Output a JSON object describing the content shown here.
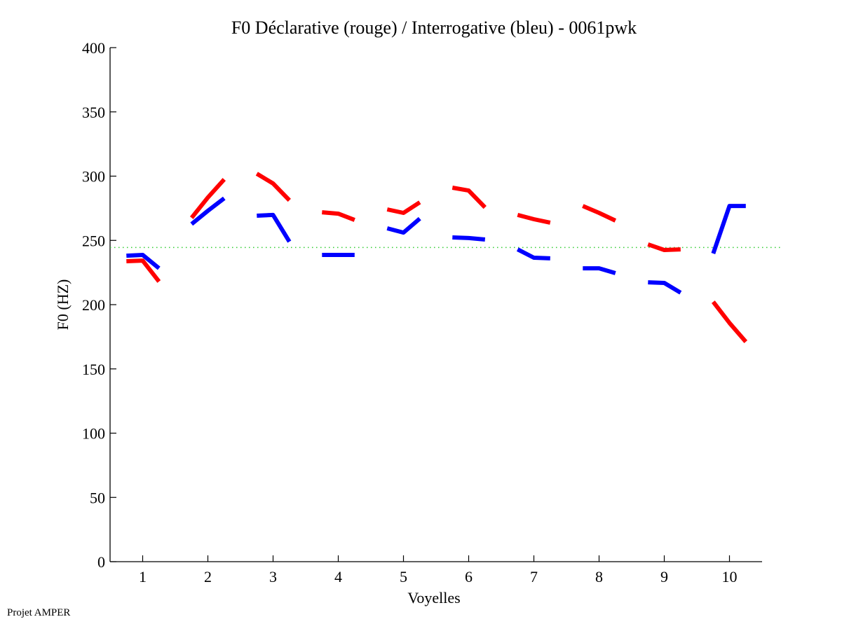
{
  "chart_data": {
    "type": "line",
    "title": "F0 Déclarative (rouge) / Interrogative (bleu) - 0061pwk",
    "xlabel": "Voyelles",
    "ylabel": "F0 (HZ)",
    "xlim": [
      0.5,
      10.5
    ],
    "ylim": [
      0,
      400
    ],
    "xticks": [
      1,
      2,
      3,
      4,
      5,
      6,
      7,
      8,
      9,
      10
    ],
    "yticks": [
      0,
      50,
      100,
      150,
      200,
      250,
      300,
      350,
      400
    ],
    "grid": false,
    "reference_line": {
      "y": 244.5,
      "color": "#33cc33",
      "style": "dotted"
    },
    "series": [
      {
        "name": "Déclarative (rouge)",
        "color": "#ff0000",
        "segments": [
          {
            "vowel": 1,
            "x": [
              0.75,
              1.0,
              1.25
            ],
            "y": [
              233.8,
              234.3,
              218.0
            ]
          },
          {
            "vowel": 2,
            "x": [
              1.75,
              2.0,
              2.25
            ],
            "y": [
              267.6,
              283.4,
              297.5
            ]
          },
          {
            "vowel": 3,
            "x": [
              2.75,
              3.0,
              3.25
            ],
            "y": [
              301.9,
              294.3,
              281.2
            ]
          },
          {
            "vowel": 4,
            "x": [
              3.75,
              4.0,
              4.25
            ],
            "y": [
              271.9,
              270.8,
              265.9
            ]
          },
          {
            "vowel": 5,
            "x": [
              4.75,
              5.0,
              5.25
            ],
            "y": [
              274.1,
              271.4,
              279.6
            ]
          },
          {
            "vowel": 6,
            "x": [
              5.75,
              6.0,
              6.25
            ],
            "y": [
              291.0,
              288.8,
              275.7
            ]
          },
          {
            "vowel": 7,
            "x": [
              6.75,
              7.0,
              7.25
            ],
            "y": [
              269.8,
              266.5,
              263.8
            ]
          },
          {
            "vowel": 8,
            "x": [
              7.75,
              8.0,
              8.25
            ],
            "y": [
              276.8,
              271.4,
              265.4
            ]
          },
          {
            "vowel": 9,
            "x": [
              8.75,
              9.0,
              9.25
            ],
            "y": [
              246.9,
              242.5,
              243.0
            ]
          },
          {
            "vowel": 10,
            "x": [
              9.75,
              10.0,
              10.25
            ],
            "y": [
              202.2,
              185.8,
              171.1
            ]
          }
        ]
      },
      {
        "name": "Interrogative (bleu)",
        "color": "#0000ff",
        "segments": [
          {
            "vowel": 1,
            "x": [
              0.75,
              1.0,
              1.25
            ],
            "y": [
              238.1,
              238.7,
              228.3
            ]
          },
          {
            "vowel": 2,
            "x": [
              1.75,
              2.0,
              2.25
            ],
            "y": [
              262.7,
              273.0,
              282.8
            ]
          },
          {
            "vowel": 3,
            "x": [
              2.75,
              3.0,
              3.25
            ],
            "y": [
              269.2,
              269.8,
              249.0
            ]
          },
          {
            "vowel": 4,
            "x": [
              3.75,
              4.0,
              4.25
            ],
            "y": [
              238.7,
              238.7,
              238.7
            ]
          },
          {
            "vowel": 5,
            "x": [
              4.75,
              5.0,
              5.25
            ],
            "y": [
              259.4,
              256.1,
              267.0
            ]
          },
          {
            "vowel": 6,
            "x": [
              5.75,
              6.0,
              6.25
            ],
            "y": [
              252.3,
              251.8,
              250.7
            ]
          },
          {
            "vowel": 7,
            "x": [
              6.75,
              7.0,
              7.25
            ],
            "y": [
              243.0,
              236.5,
              236.0
            ]
          },
          {
            "vowel": 8,
            "x": [
              7.75,
              8.0,
              8.25
            ],
            "y": [
              228.3,
              228.3,
              224.5
            ]
          },
          {
            "vowel": 9,
            "x": [
              8.75,
              9.0,
              9.25
            ],
            "y": [
              217.4,
              216.9,
              209.3
            ]
          },
          {
            "vowel": 10,
            "x": [
              9.75,
              10.0,
              10.25
            ],
            "y": [
              239.8,
              276.8,
              276.8
            ]
          }
        ]
      }
    ]
  },
  "footer": {
    "credit": "Projet AMPER"
  }
}
